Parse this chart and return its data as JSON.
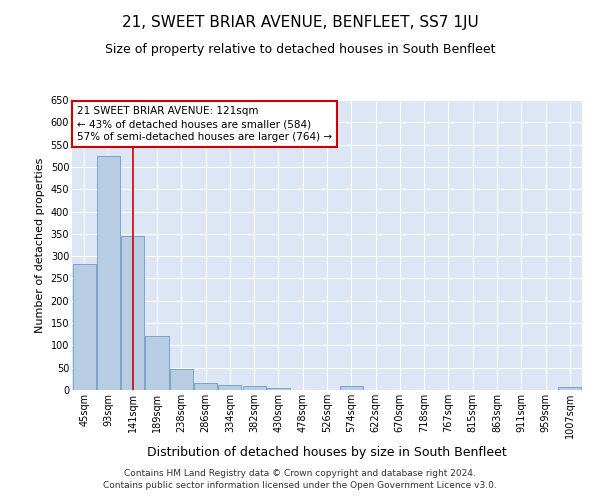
{
  "title": "21, SWEET BRIAR AVENUE, BENFLEET, SS7 1JU",
  "subtitle": "Size of property relative to detached houses in South Benfleet",
  "xlabel": "Distribution of detached houses by size in South Benfleet",
  "ylabel": "Number of detached properties",
  "footer_line1": "Contains HM Land Registry data © Crown copyright and database right 2024.",
  "footer_line2": "Contains public sector information licensed under the Open Government Licence v3.0.",
  "categories": [
    "45sqm",
    "93sqm",
    "141sqm",
    "189sqm",
    "238sqm",
    "286sqm",
    "334sqm",
    "382sqm",
    "430sqm",
    "478sqm",
    "526sqm",
    "574sqm",
    "622sqm",
    "670sqm",
    "718sqm",
    "767sqm",
    "815sqm",
    "863sqm",
    "911sqm",
    "959sqm",
    "1007sqm"
  ],
  "values": [
    283,
    524,
    345,
    120,
    48,
    16,
    11,
    10,
    5,
    0,
    0,
    8,
    0,
    0,
    0,
    0,
    0,
    0,
    0,
    0,
    6
  ],
  "bar_color": "#b8cce4",
  "bar_edge_color": "#5a8fc2",
  "ylim": [
    0,
    650
  ],
  "yticks": [
    0,
    50,
    100,
    150,
    200,
    250,
    300,
    350,
    400,
    450,
    500,
    550,
    600,
    650
  ],
  "vline_x": 2,
  "vline_color": "#cc0000",
  "annotation_title": "21 SWEET BRIAR AVENUE: 121sqm",
  "annotation_line1": "← 43% of detached houses are smaller (584)",
  "annotation_line2": "57% of semi-detached houses are larger (764) →",
  "annotation_box_color": "#ffffff",
  "annotation_box_edge": "#cc0000",
  "fig_bg_color": "#ffffff",
  "plot_bg_color": "#dce6f5",
  "grid_color": "#ffffff",
  "title_fontsize": 11,
  "subtitle_fontsize": 9,
  "xlabel_fontsize": 9,
  "ylabel_fontsize": 8,
  "tick_fontsize": 7,
  "annotation_fontsize": 7.5,
  "footer_fontsize": 6.5
}
